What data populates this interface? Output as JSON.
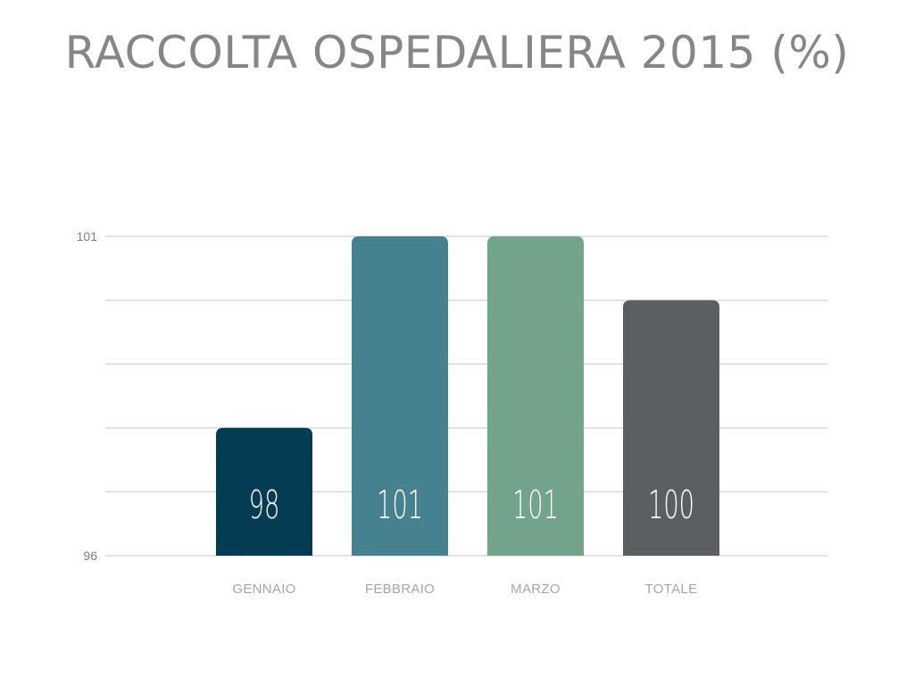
{
  "chart_data": {
    "type": "bar",
    "title": "RACCOLTA OSPEDALIERA 2015 (%)",
    "categories": [
      "GENNAIO",
      "FEBBRAIO",
      "MARZO",
      "TOTALE"
    ],
    "values": [
      98,
      101,
      101,
      100
    ],
    "data_labels": [
      "98",
      "101",
      "101",
      "100"
    ],
    "ylim": [
      96,
      101
    ],
    "yticks": [
      "101",
      "96"
    ],
    "grid": true,
    "legend": "none",
    "colors": [
      "#043d53",
      "#468190",
      "#72a38b",
      "#5b5f62"
    ]
  }
}
